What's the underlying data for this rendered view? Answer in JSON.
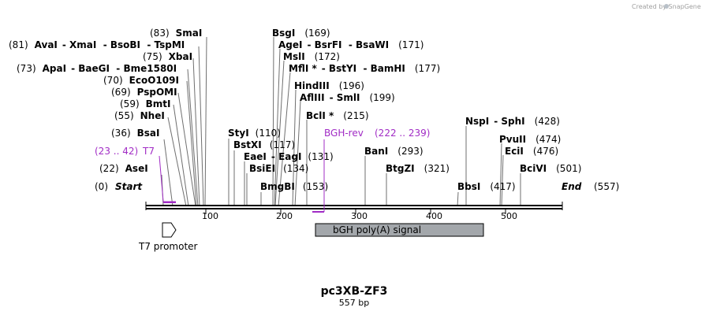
{
  "credit": "Created by SnapGene",
  "map": {
    "title": "pc3XB-ZF3",
    "length_label": "557 bp",
    "ticks": [
      "100",
      "200",
      "300",
      "400",
      "500"
    ],
    "start_label": "Start",
    "start_pos": "(0)",
    "end_label": "End",
    "end_pos": "(557)"
  },
  "sites": [
    {
      "pos": "(22)",
      "name": "AseI"
    },
    {
      "pos": "(36)",
      "name": "BsaI"
    },
    {
      "pos": "(55)",
      "name": "NheI"
    },
    {
      "pos": "(59)",
      "name": "BmtI"
    },
    {
      "pos": "(69)",
      "name": "PspOMI"
    },
    {
      "pos": "(70)",
      "name": "EcoO109I"
    },
    {
      "pos": "(73)",
      "name": "ApaI",
      "also": "- BaeGI  - Bme1580I"
    },
    {
      "pos": "(75)",
      "name": "XbaI"
    },
    {
      "pos": "(81)",
      "name": "AvaI",
      "also": "- XmaI  - BsoBI  - TspMI"
    },
    {
      "pos": "(83)",
      "name": "SmaI"
    },
    {
      "name": "StyI",
      "pos": "(110)"
    },
    {
      "name": "BstXI",
      "pos": "(117)"
    },
    {
      "name": "EaeI",
      "also": "- EagI",
      "pos": "(131)"
    },
    {
      "name": "BsiEI",
      "pos": "(134)"
    },
    {
      "name": "BmgBI",
      "pos": "(153)"
    },
    {
      "name": "BsgI",
      "pos": "(169)"
    },
    {
      "name": "AgeI",
      "also": "- BsrFI  - BsaWI",
      "pos": "(171)"
    },
    {
      "name": "MslI",
      "pos": "(172)"
    },
    {
      "name": "MflI *",
      "also": "- BstYI  - BamHI",
      "pos": "(177)"
    },
    {
      "name": "HindIII",
      "pos": "(196)"
    },
    {
      "name": "AflIII",
      "also": "- SmlI",
      "pos": "(199)"
    },
    {
      "name": "BclI *",
      "pos": "(215)"
    },
    {
      "name": "BanI",
      "pos": "(293)"
    },
    {
      "name": "BtgZI",
      "pos": "(321)"
    },
    {
      "name": "BbsI",
      "pos": "(417)"
    },
    {
      "name": "NspI",
      "also": "- SphI",
      "pos": "(428)"
    },
    {
      "name": "PvuII",
      "pos": "(474)"
    },
    {
      "name": "EciI",
      "pos": "(476)"
    },
    {
      "name": "BciVI",
      "pos": "(501)"
    }
  ],
  "primers": [
    {
      "name": "T7",
      "range": "(23 .. 42)"
    },
    {
      "name": "BGH-rev",
      "range": "(222 .. 239)"
    }
  ],
  "features": [
    {
      "name": "T7 promoter"
    },
    {
      "name": "bGH poly(A) signal"
    }
  ],
  "colors": {
    "primer": "#a12cc5",
    "feature_fill": "#a3a7ab",
    "backbone": "#000000",
    "leader": "#6f6f6f",
    "credit": "#a0a0a0"
  }
}
